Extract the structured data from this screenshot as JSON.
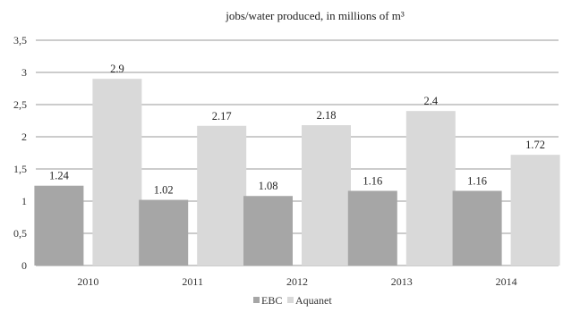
{
  "chart_data": {
    "type": "bar",
    "title": "jobs/water produced, in millions of m³",
    "categories": [
      "2010",
      "2011",
      "2012",
      "2013",
      "2014"
    ],
    "series": [
      {
        "name": "EBC",
        "values": [
          1.24,
          1.02,
          1.08,
          1.16,
          1.16
        ],
        "color": "#a6a6a6"
      },
      {
        "name": "Aquanet",
        "values": [
          2.9,
          2.17,
          2.18,
          2.4,
          1.72
        ],
        "color": "#d9d9d9"
      }
    ],
    "data_labels": [
      [
        "1.24",
        "1.02",
        "1.08",
        "1.16",
        "1.16"
      ],
      [
        "2.9",
        "2.17",
        "2.18",
        "2.4",
        "1.72"
      ]
    ],
    "yticks": [
      0,
      0.5,
      1,
      1.5,
      2,
      2.5,
      3,
      3.5
    ],
    "ytick_labels": [
      "0",
      "0,5",
      "1",
      "1,5",
      "2",
      "2,5",
      "3",
      "3,5"
    ],
    "ylim": [
      0,
      3.5
    ],
    "grid": true,
    "legend_position": "bottom"
  }
}
